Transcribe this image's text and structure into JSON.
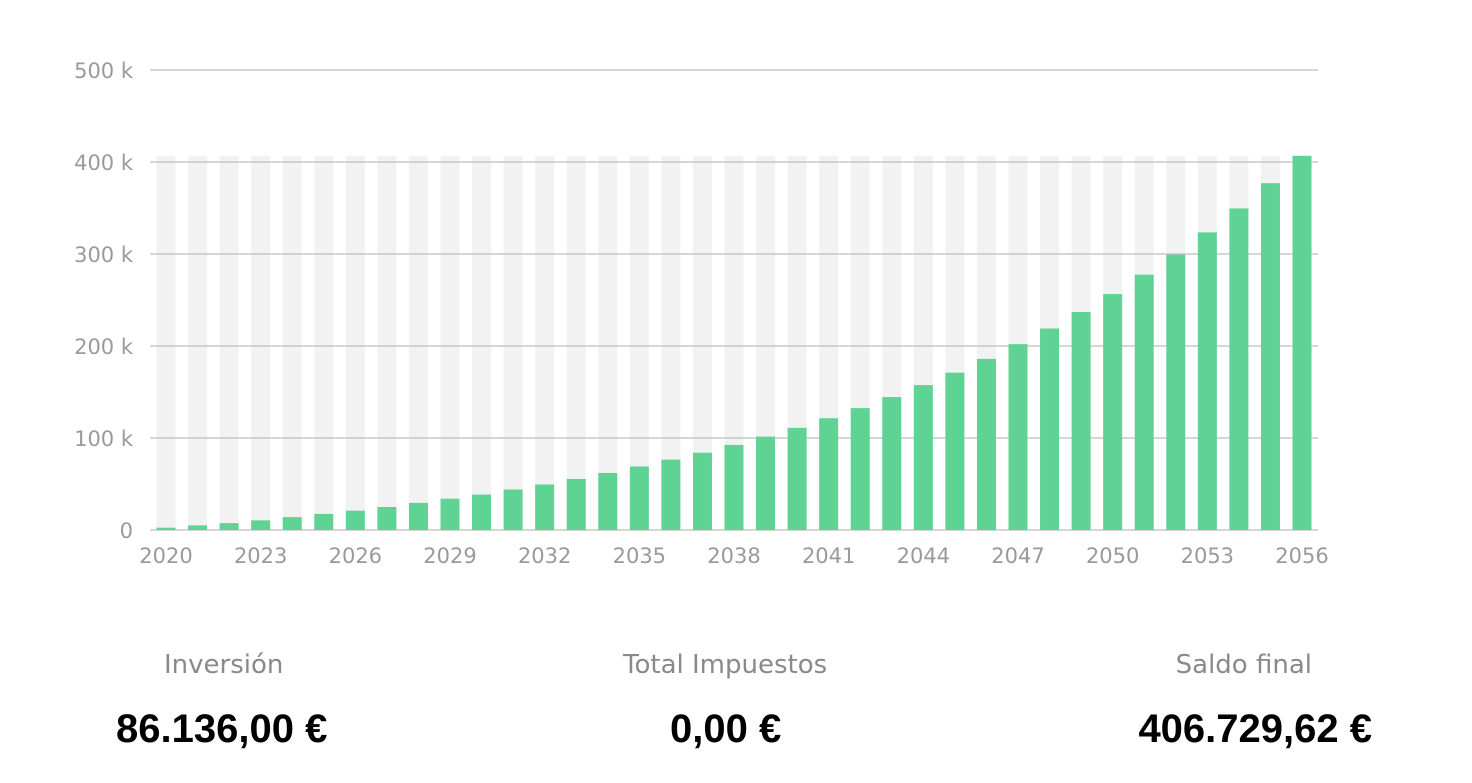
{
  "chart_data": {
    "type": "bar",
    "x": [
      2020,
      2021,
      2022,
      2023,
      2024,
      2025,
      2026,
      2027,
      2028,
      2029,
      2030,
      2031,
      2032,
      2033,
      2034,
      2035,
      2036,
      2037,
      2038,
      2039,
      2040,
      2041,
      2042,
      2043,
      2044,
      2045,
      2046,
      2047,
      2048,
      2049,
      2050,
      2051,
      2052,
      2053,
      2054,
      2055,
      2056
    ],
    "values": [
      2500,
      5000,
      7500,
      10500,
      14000,
      17500,
      21000,
      25000,
      29500,
      34000,
      38500,
      44000,
      49500,
      55500,
      62000,
      69000,
      76500,
      84000,
      92500,
      101500,
      111000,
      121500,
      132500,
      144500,
      157500,
      171000,
      186000,
      202000,
      219000,
      237000,
      256500,
      277500,
      299500,
      323500,
      349500,
      377000,
      406729.62
    ],
    "x_tick_labels": [
      "2020",
      "2023",
      "2026",
      "2029",
      "2032",
      "2035",
      "2038",
      "2041",
      "2044",
      "2047",
      "2050",
      "2053",
      "2056"
    ],
    "y_tick_labels": [
      "0",
      "100 k",
      "200 k",
      "300 k",
      "400 k",
      "500 k"
    ],
    "y_ticks": [
      0,
      100000,
      200000,
      300000,
      400000,
      500000
    ],
    "ylim": [
      0,
      500000
    ],
    "grid": true,
    "bar_color": "#5fd394",
    "background_bar_color": "#f2f2f2",
    "title": "",
    "xlabel": "",
    "ylabel": ""
  },
  "summary": {
    "inversion_label": "Inversión",
    "inversion_value": "86.136,00 €",
    "impuestos_label": "Total Impuestos",
    "impuestos_value": "0,00 €",
    "saldo_label": "Saldo final",
    "saldo_value": "406.729,62 €"
  }
}
